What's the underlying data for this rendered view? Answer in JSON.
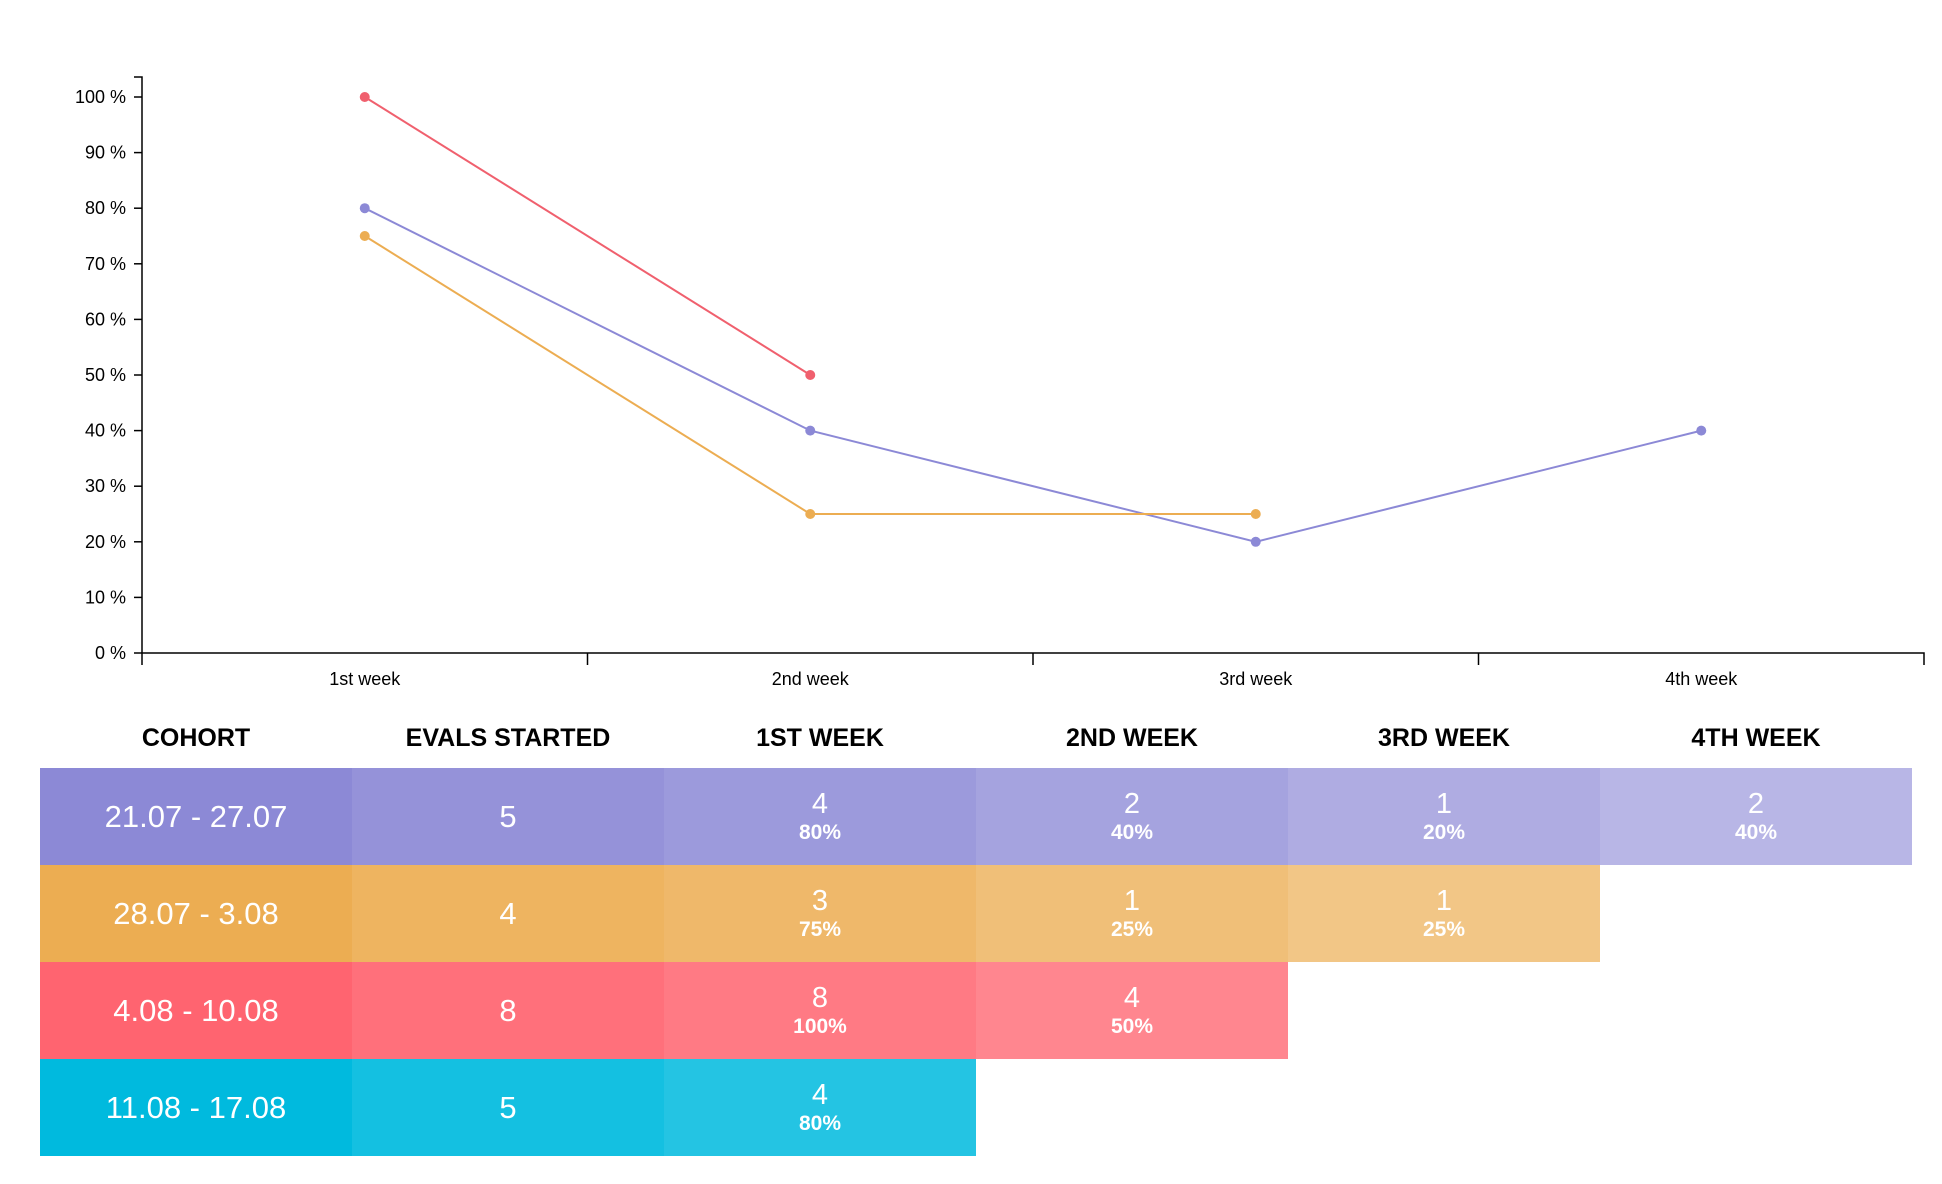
{
  "chart_data": {
    "type": "line",
    "categories": [
      "1st week",
      "2nd week",
      "3rd week",
      "4th week"
    ],
    "y_ticks": [
      "0 %",
      "10 %",
      "20 %",
      "30 %",
      "40 %",
      "50 %",
      "60 %",
      "70 %",
      "80 %",
      "90 %",
      "100 %"
    ],
    "ylim": [
      0,
      100
    ],
    "series": [
      {
        "color": "#f0606e",
        "values": [
          100,
          50,
          null,
          null
        ]
      },
      {
        "color": "#8c89d6",
        "values": [
          80,
          40,
          20,
          40
        ]
      },
      {
        "color": "#ecad52",
        "values": [
          75,
          25,
          25,
          null
        ]
      }
    ],
    "grid": false,
    "legend": "none"
  },
  "table": {
    "headers": [
      "COHORT",
      "EVALS STARTED",
      "1ST WEEK",
      "2ND WEEK",
      "3RD WEEK",
      "4TH WEEK"
    ],
    "rows": [
      {
        "cohort": "21.07 - 27.07",
        "started": "5",
        "color": "#8c89d6",
        "weeks": [
          {
            "count": "4",
            "pct": "80%"
          },
          {
            "count": "2",
            "pct": "40%"
          },
          {
            "count": "1",
            "pct": "20%"
          },
          {
            "count": "2",
            "pct": "40%"
          }
        ]
      },
      {
        "cohort": "28.07 - 3.08",
        "started": "4",
        "color": "#ecad52",
        "weeks": [
          {
            "count": "3",
            "pct": "75%"
          },
          {
            "count": "1",
            "pct": "25%"
          },
          {
            "count": "1",
            "pct": "25%"
          }
        ]
      },
      {
        "cohort": "4.08 - 10.08",
        "started": "8",
        "color": "#ff6470",
        "weeks": [
          {
            "count": "8",
            "pct": "100%"
          },
          {
            "count": "4",
            "pct": "50%"
          }
        ]
      },
      {
        "cohort": "11.08 - 17.08",
        "started": "5",
        "color": "#00bade",
        "weeks": [
          {
            "count": "4",
            "pct": "80%"
          }
        ]
      }
    ]
  }
}
